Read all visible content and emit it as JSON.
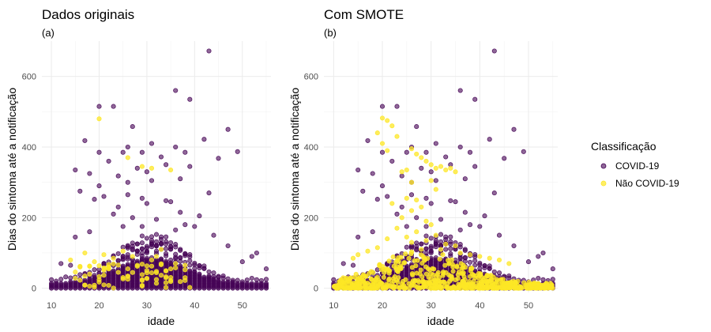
{
  "legend": {
    "title": "Classificação",
    "position": "right",
    "items": [
      {
        "label": "COVID-19",
        "color": "#440154"
      },
      {
        "label": "Não COVID-19",
        "color": "#FDE725"
      }
    ]
  },
  "chart_data": [
    {
      "type": "scatter",
      "title": "Dados originais",
      "subtitle": "(a)",
      "xlabel": "idade",
      "ylabel": "Dias do sintoma até a notificação",
      "xlim": [
        8,
        56
      ],
      "ylim": [
        -12,
        700
      ],
      "xticks": [
        10,
        20,
        30,
        40,
        50
      ],
      "yticks": [
        0,
        200,
        400,
        600
      ],
      "grid": true,
      "series": [
        {
          "name": "COVID-19",
          "color": "#440154",
          "points": [
            [
              43,
              672
            ],
            [
              36,
              560
            ],
            [
              39,
              535
            ],
            [
              20,
              515
            ],
            [
              23,
              515
            ],
            [
              27,
              458
            ],
            [
              42,
              422
            ],
            [
              47,
              450
            ],
            [
              49,
              387
            ],
            [
              20,
              385
            ],
            [
              17,
              418
            ],
            [
              26,
              400
            ],
            [
              29,
              385
            ],
            [
              31,
              410
            ],
            [
              36,
              400
            ],
            [
              38,
              385
            ],
            [
              25,
              385
            ],
            [
              33,
              372
            ],
            [
              22,
              360
            ],
            [
              34,
              350
            ],
            [
              28,
              340
            ],
            [
              30,
              330
            ],
            [
              39,
              345
            ],
            [
              45,
              368
            ],
            [
              15,
              335
            ],
            [
              18,
              325
            ],
            [
              24,
              318
            ],
            [
              26,
              300
            ],
            [
              31,
              305
            ],
            [
              37,
              310
            ],
            [
              20,
              290
            ],
            [
              26,
              265
            ],
            [
              29,
              255
            ],
            [
              19,
              252
            ],
            [
              16,
              275
            ],
            [
              43,
              270
            ],
            [
              21,
              260
            ],
            [
              34,
              248
            ],
            [
              24,
              230
            ],
            [
              23,
              210
            ],
            [
              30,
              240
            ],
            [
              35,
              245
            ],
            [
              37,
              215
            ],
            [
              41,
              205
            ],
            [
              27,
              200
            ],
            [
              32,
              195
            ],
            [
              25,
              175
            ],
            [
              38,
              180
            ],
            [
              36,
              165
            ],
            [
              29,
              175
            ],
            [
              18,
              160
            ],
            [
              15,
              145
            ],
            [
              40,
              175
            ],
            [
              44,
              150
            ],
            [
              47,
              120
            ],
            [
              52,
              90
            ],
            [
              50,
              75
            ],
            [
              12,
              70
            ],
            [
              14,
              65
            ],
            [
              53,
              100
            ],
            [
              55,
              55
            ]
          ]
        },
        {
          "name": "Não COVID-19",
          "color": "#FDE725",
          "points": [
            [
              20,
              480
            ],
            [
              26,
              370
            ],
            [
              29,
              345
            ],
            [
              31,
              340
            ],
            [
              35,
              335
            ],
            [
              17,
              100
            ],
            [
              21,
              95
            ],
            [
              23,
              85
            ],
            [
              19,
              75
            ],
            [
              25,
              105
            ],
            [
              27,
              90
            ],
            [
              31,
              80
            ],
            [
              33,
              110
            ],
            [
              36,
              70
            ],
            [
              22,
              60
            ],
            [
              28,
              65
            ],
            [
              35,
              55
            ],
            [
              24,
              45
            ],
            [
              30,
              50
            ],
            [
              14,
              80
            ],
            [
              16,
              60
            ],
            [
              38,
              30
            ],
            [
              32,
              90
            ],
            [
              26,
              55
            ],
            [
              18,
              40
            ]
          ]
        }
      ]
    },
    {
      "type": "scatter",
      "title": "Com SMOTE",
      "subtitle": "(b)",
      "xlabel": "idade",
      "ylabel": "Dias do sintoma até a notificação",
      "xlim": [
        8,
        56
      ],
      "ylim": [
        -12,
        700
      ],
      "xticks": [
        10,
        20,
        30,
        40,
        50
      ],
      "yticks": [
        0,
        200,
        400,
        600
      ],
      "grid": true,
      "series": [
        {
          "name": "COVID-19",
          "color": "#440154",
          "points": [
            [
              43,
              672
            ],
            [
              36,
              560
            ],
            [
              39,
              535
            ],
            [
              20,
              515
            ],
            [
              23,
              515
            ],
            [
              27,
              458
            ],
            [
              42,
              422
            ],
            [
              47,
              450
            ],
            [
              49,
              387
            ],
            [
              20,
              385
            ],
            [
              17,
              418
            ],
            [
              26,
              400
            ],
            [
              29,
              385
            ],
            [
              31,
              410
            ],
            [
              36,
              400
            ],
            [
              38,
              385
            ],
            [
              25,
              385
            ],
            [
              33,
              372
            ],
            [
              22,
              360
            ],
            [
              34,
              350
            ],
            [
              28,
              340
            ],
            [
              30,
              330
            ],
            [
              39,
              345
            ],
            [
              45,
              368
            ],
            [
              15,
              335
            ],
            [
              18,
              325
            ],
            [
              24,
              318
            ],
            [
              26,
              300
            ],
            [
              31,
              305
            ],
            [
              37,
              310
            ],
            [
              20,
              290
            ],
            [
              26,
              265
            ],
            [
              29,
              255
            ],
            [
              19,
              252
            ],
            [
              16,
              275
            ],
            [
              43,
              270
            ],
            [
              21,
              260
            ],
            [
              34,
              248
            ],
            [
              24,
              230
            ],
            [
              23,
              210
            ],
            [
              30,
              240
            ],
            [
              35,
              245
            ],
            [
              37,
              215
            ],
            [
              41,
              205
            ],
            [
              27,
              200
            ],
            [
              32,
              195
            ],
            [
              25,
              175
            ],
            [
              38,
              180
            ],
            [
              36,
              165
            ],
            [
              29,
              175
            ],
            [
              18,
              160
            ],
            [
              15,
              145
            ],
            [
              40,
              175
            ],
            [
              44,
              150
            ],
            [
              47,
              120
            ],
            [
              52,
              90
            ],
            [
              50,
              75
            ],
            [
              12,
              70
            ],
            [
              14,
              65
            ],
            [
              53,
              100
            ],
            [
              55,
              55
            ]
          ]
        },
        {
          "name": "Não COVID-19",
          "color": "#FDE725",
          "points": [
            [
              20,
              482
            ],
            [
              21,
              475
            ],
            [
              26,
              395
            ],
            [
              27,
              380
            ],
            [
              28,
              370
            ],
            [
              29,
              360
            ],
            [
              30,
              350
            ],
            [
              31,
              340
            ],
            [
              32,
              345
            ],
            [
              33,
              335
            ],
            [
              34,
              340
            ],
            [
              35,
              330
            ],
            [
              25,
              335
            ],
            [
              24,
              330
            ],
            [
              30,
              305
            ],
            [
              31,
              280
            ],
            [
              26,
              300
            ],
            [
              22,
              460
            ],
            [
              19,
              440
            ],
            [
              23,
              430
            ],
            [
              20,
              410
            ],
            [
              21,
              390
            ],
            [
              27,
              250
            ],
            [
              28,
              230
            ],
            [
              26,
              220
            ],
            [
              25,
              255
            ],
            [
              22,
              240
            ],
            [
              24,
              200
            ],
            [
              29,
              190
            ],
            [
              30,
              180
            ],
            [
              23,
              170
            ],
            [
              27,
              160
            ],
            [
              31,
              150
            ],
            [
              21,
              140
            ],
            [
              26,
              130
            ],
            [
              33,
              125
            ],
            [
              35,
              120
            ],
            [
              28,
              110
            ],
            [
              19,
              115
            ],
            [
              17,
              105
            ],
            [
              36,
              100
            ],
            [
              38,
              95
            ],
            [
              40,
              90
            ],
            [
              42,
              85
            ],
            [
              15,
              95
            ],
            [
              14,
              85
            ],
            [
              44,
              80
            ],
            [
              46,
              70
            ],
            [
              25,
              145
            ],
            [
              29,
              135
            ],
            [
              32,
              110
            ]
          ]
        }
      ]
    }
  ]
}
